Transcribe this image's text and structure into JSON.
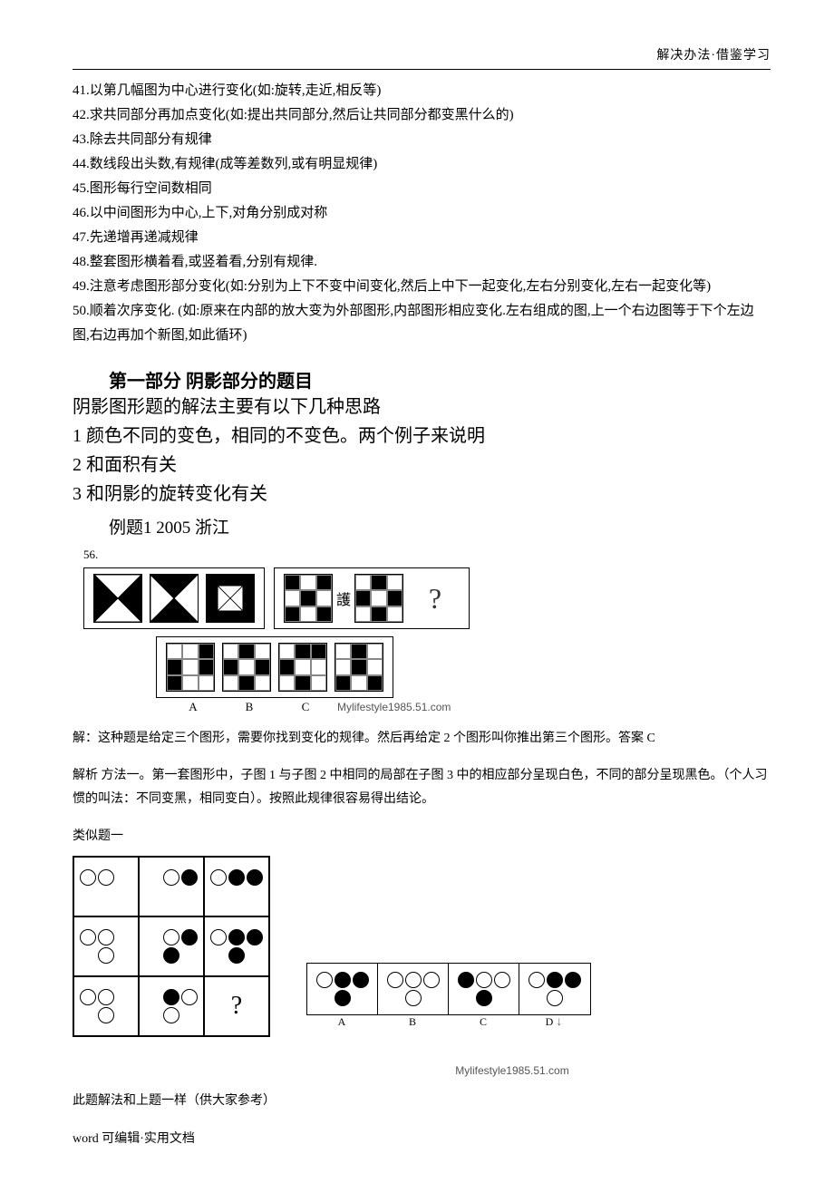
{
  "header": {
    "right_text": "解决办法·借鉴学习"
  },
  "rules": [
    "41.以第几幅图为中心进行变化(如:旋转,走近,相反等)",
    "42.求共同部分再加点变化(如:提出共同部分,然后让共同部分都变黑什么的)",
    "43.除去共同部分有规律",
    "44.数线段出头数,有规律(成等差数列,或有明显规律)",
    "45.图形每行空间数相同",
    "46.以中间图形为中心,上下,对角分别成对称",
    "47.先递增再递减规律",
    "48.整套图形横着看,或竖着看,分别有规律.",
    "49.注意考虑图形部分变化(如:分别为上下不变中间变化,然后上中下一起变化,左右分别变化,左右一起变化等)",
    "50.顺着次序变化. (如:原来在内部的放大变为外部图形,内部图形相应变化.左右组成的图,上一个右边图等于下个左边图,右边再加个新图,如此循环)"
  ],
  "section1": {
    "title": "第一部分 阴影部分的题目",
    "intro": "阴影图形题的解法主要有以下几种思路",
    "points": [
      "1 颜色不同的变色，相同的不变色。两个例子来说明",
      "2 和面积有关",
      "3 和阴影的旋转变化有关"
    ]
  },
  "example1": {
    "title": "例题1   2005 浙江",
    "q_number": "56.",
    "qmark": "?",
    "answer_labels": [
      "A",
      "B",
      "C",
      ""
    ],
    "watermark": "Mylifestyle1985.51.com",
    "explain_lines": [
      "解：这种题是给定三个图形，需要你找到变化的规律。然后再给定 2 个图形叫你推出第三个图形。答案 C",
      "解析 方法一。第一套图形中，子图 1 与子图 2 中相同的局部在子图 3 中的相应部分呈现白色，不同的部分呈现黑色。（个人习惯的叫法：不同变黑，相同变白）。按照此规律很容易得出结论。",
      "类似题一"
    ],
    "grids_q2": [
      [
        1,
        0,
        1,
        0,
        1,
        0,
        1,
        0,
        1
      ],
      [
        0,
        1,
        0,
        1,
        0,
        1,
        0,
        1,
        0
      ]
    ],
    "grids_ans": [
      [
        0,
        0,
        1,
        1,
        0,
        1,
        1,
        0,
        0
      ],
      [
        0,
        1,
        0,
        1,
        0,
        1,
        0,
        1,
        0
      ],
      [
        0,
        1,
        1,
        1,
        0,
        0,
        0,
        1,
        0
      ],
      [
        0,
        1,
        0,
        0,
        1,
        0,
        1,
        0,
        1
      ]
    ]
  },
  "example2": {
    "qmark": "?",
    "answer_labels": [
      "A",
      "B",
      "C",
      "D"
    ],
    "arrow": "↓",
    "watermark": "Mylifestyle1985.51.com",
    "note": "此题解法和上题一样（供大家参考）",
    "grid_main": [
      [
        "o",
        "o",
        "_",
        "_"
      ],
      [
        "_",
        "o",
        "f",
        "_"
      ],
      [
        "o",
        "f",
        "f",
        "_"
      ],
      [
        "o",
        "o",
        "_",
        "o"
      ],
      [
        "_",
        "o",
        "f",
        "f"
      ],
      [
        "o",
        "f",
        "f",
        "f"
      ],
      [
        "o",
        "o",
        "_",
        "o"
      ],
      [
        "_",
        "f",
        "o",
        "o"
      ],
      "?"
    ],
    "answers": [
      [
        "o",
        "f",
        "f",
        "f"
      ],
      [
        "o",
        "o",
        "o",
        "o"
      ],
      [
        "f",
        "o",
        "o",
        "f"
      ],
      [
        "o",
        "f",
        "f",
        "o"
      ]
    ]
  },
  "footer": {
    "text": "word 可编辑·实用文档"
  }
}
